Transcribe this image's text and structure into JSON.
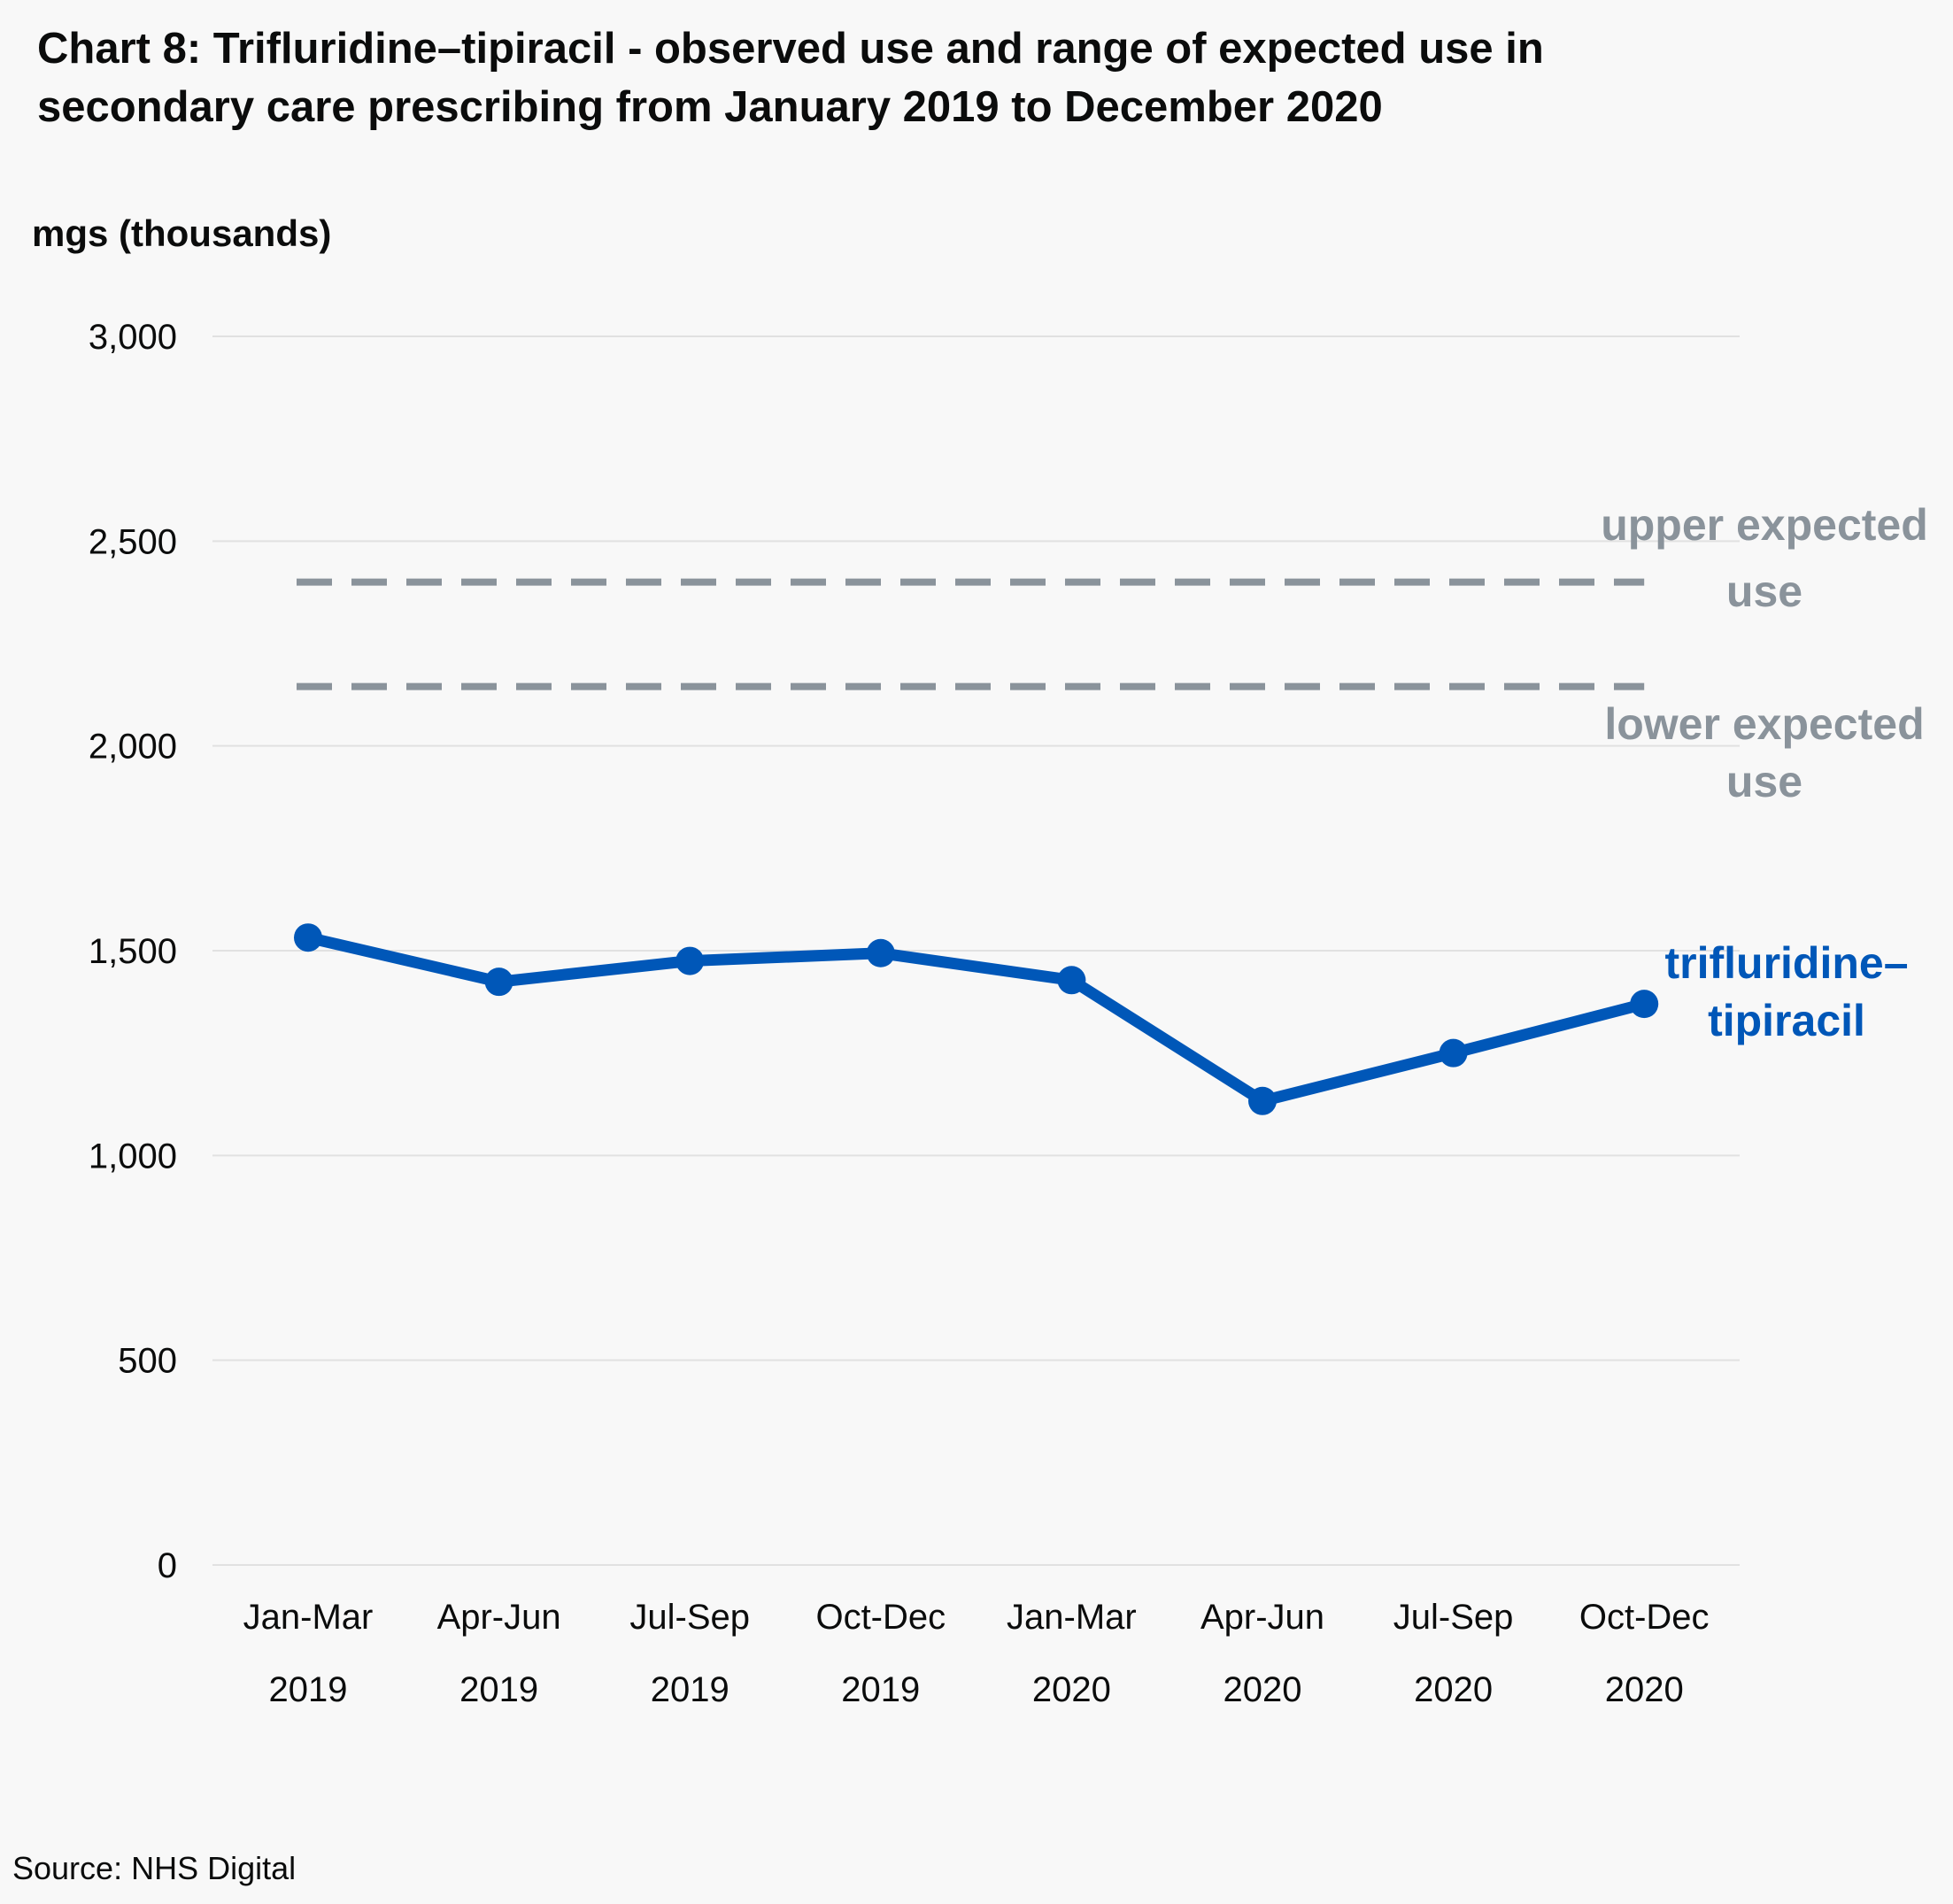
{
  "chart_data": {
    "type": "line",
    "title_lines": [
      "Chart 8: Trifluridine–tipiracil - observed use and range of expected use in",
      "secondary care prescribing from January 2019 to December 2020"
    ],
    "ylabel": "mgs (thousands)",
    "ylim": [
      0,
      3000
    ],
    "yticks": [
      0,
      500,
      1000,
      1500,
      2000,
      2500,
      3000
    ],
    "ytick_labels": [
      "0",
      "500",
      "1,000",
      "1,500",
      "2,000",
      "2,500",
      "3,000"
    ],
    "categories": [
      {
        "period": "Jan-Mar",
        "year": "2019"
      },
      {
        "period": "Apr-Jun",
        "year": "2019"
      },
      {
        "period": "Jul-Sep",
        "year": "2019"
      },
      {
        "period": "Oct-Dec",
        "year": "2019"
      },
      {
        "period": "Jan-Mar",
        "year": "2020"
      },
      {
        "period": "Apr-Jun",
        "year": "2020"
      },
      {
        "period": "Jul-Sep",
        "year": "2020"
      },
      {
        "period": "Oct-Dec",
        "year": "2020"
      }
    ],
    "series": [
      {
        "name_lines": [
          "trifluridine–",
          "tipiracil"
        ],
        "color": "#0057b8",
        "values": [
          1532,
          1424,
          1475,
          1494,
          1428,
          1133,
          1250,
          1370
        ]
      }
    ],
    "reference_lines": [
      {
        "label_lines": [
          "upper expected",
          "use"
        ],
        "value": 2400,
        "color": "#8a939b"
      },
      {
        "label_lines": [
          "lower expected",
          "use"
        ],
        "value": 2145,
        "color": "#8a939b"
      }
    ],
    "grid": true,
    "legend": "none"
  },
  "source": "Source: NHS Digital"
}
